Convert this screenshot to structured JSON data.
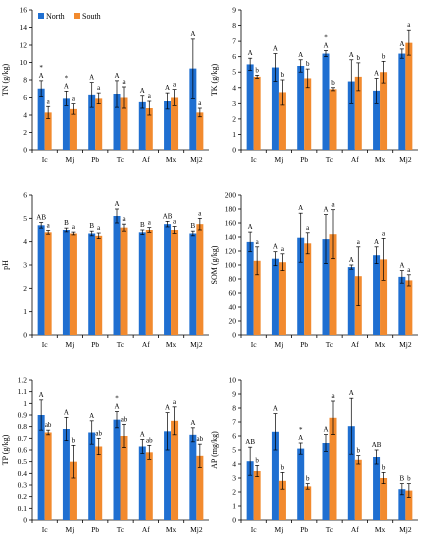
{
  "legend": {
    "series": [
      "North",
      "South"
    ]
  },
  "colors": {
    "North": "#1f6fd1",
    "South": "#f28a2e"
  },
  "chart_data": [
    {
      "type": "bar",
      "ylabel": "TN (g/kg)",
      "ylim": [
        0,
        16
      ],
      "yticks": [
        0,
        2,
        4,
        6,
        8,
        10,
        12,
        14,
        16
      ],
      "categories": [
        "Ic",
        "Mj",
        "Pb",
        "Tc",
        "Af",
        "Mx",
        "Mj2"
      ],
      "series": [
        {
          "name": "North",
          "values": [
            7.0,
            5.9,
            6.3,
            6.4,
            5.5,
            5.6,
            9.3
          ],
          "errors": [
            0.9,
            0.8,
            1.4,
            1.5,
            0.7,
            0.9,
            3.4
          ],
          "letters": [
            "A",
            "A",
            "A",
            "A",
            "A",
            "A",
            "A"
          ]
        },
        {
          "name": "South",
          "values": [
            4.3,
            4.7,
            5.9,
            6.0,
            4.8,
            6.0,
            4.3
          ],
          "errors": [
            0.7,
            0.6,
            0.6,
            1.2,
            0.8,
            0.9,
            0.5
          ],
          "letters": [
            "a",
            "a",
            "a",
            "a",
            "a",
            "a",
            "a"
          ]
        }
      ],
      "stars": [
        "*",
        "*",
        "",
        "",
        "",
        "",
        ""
      ]
    },
    {
      "type": "bar",
      "ylabel": "TK (g/kg)",
      "ylim": [
        0,
        9
      ],
      "yticks": [
        0,
        1,
        2,
        3,
        4,
        5,
        6,
        7,
        8,
        9
      ],
      "categories": [
        "Ic",
        "Mj",
        "Pb",
        "Tc",
        "Af",
        "Mx",
        "Mj2"
      ],
      "series": [
        {
          "name": "North",
          "values": [
            5.5,
            5.3,
            5.4,
            6.2,
            4.4,
            3.8,
            6.2
          ],
          "errors": [
            0.4,
            0.9,
            0.4,
            0.2,
            1.4,
            0.8,
            0.3
          ],
          "letters": [
            "A",
            "A",
            "A",
            "A",
            "A",
            "A",
            "A"
          ]
        },
        {
          "name": "South",
          "values": [
            4.7,
            3.7,
            4.6,
            3.9,
            4.7,
            5.0,
            6.9
          ],
          "errors": [
            0.1,
            0.8,
            0.6,
            0.1,
            0.9,
            0.7,
            0.8
          ],
          "letters": [
            "b",
            "b",
            "b",
            "b",
            "b",
            "b",
            "a"
          ]
        }
      ],
      "stars": [
        "",
        "",
        "",
        "*",
        "",
        "",
        ""
      ]
    },
    {
      "type": "bar",
      "ylabel": "pH",
      "ylim": [
        0,
        6
      ],
      "yticks": [
        0,
        1,
        2,
        3,
        4,
        5,
        6
      ],
      "categories": [
        "Ic",
        "Mj",
        "Pb",
        "Tc",
        "Af",
        "Mx",
        "Mj2"
      ],
      "series": [
        {
          "name": "North",
          "values": [
            4.7,
            4.5,
            4.35,
            5.1,
            4.4,
            4.75,
            4.35
          ],
          "errors": [
            0.12,
            0.08,
            0.1,
            0.3,
            0.1,
            0.12,
            0.1
          ],
          "letters": [
            "AB",
            "B",
            "B",
            "A",
            "B",
            "AB",
            "B"
          ]
        },
        {
          "name": "South",
          "values": [
            4.4,
            4.35,
            4.25,
            4.6,
            4.5,
            4.5,
            4.75
          ],
          "errors": [
            0.08,
            0.06,
            0.12,
            0.15,
            0.1,
            0.15,
            0.25
          ],
          "letters": [
            "a",
            "a",
            "a",
            "a",
            "a",
            "a",
            "a"
          ]
        }
      ],
      "stars": [
        "",
        "",
        "",
        "",
        "",
        "",
        ""
      ]
    },
    {
      "type": "bar",
      "ylabel": "SOM (g/kg)",
      "ylim": [
        0,
        200
      ],
      "yticks": [
        0,
        20,
        40,
        60,
        80,
        100,
        120,
        140,
        160,
        180,
        200
      ],
      "categories": [
        "Ic",
        "Mj",
        "Pb",
        "Tc",
        "Af",
        "Mx",
        "Mj2"
      ],
      "series": [
        {
          "name": "North",
          "values": [
            133,
            109,
            139,
            137,
            97,
            114,
            83
          ],
          "errors": [
            14,
            10,
            35,
            35,
            3,
            12,
            9
          ],
          "letters": [
            "A",
            "A",
            "A",
            "A",
            "A",
            "A",
            "A"
          ]
        },
        {
          "name": "South",
          "values": [
            106,
            104,
            131,
            144,
            84,
            108,
            78
          ],
          "errors": [
            20,
            12,
            15,
            35,
            42,
            30,
            8
          ],
          "letters": [
            "a",
            "a",
            "a",
            "a",
            "a",
            "a",
            "a"
          ]
        }
      ],
      "stars": [
        "",
        "",
        "",
        "",
        "",
        "",
        ""
      ]
    },
    {
      "type": "bar",
      "ylabel": "TP (g/kg)",
      "ylim": [
        0,
        1.2
      ],
      "yticks": [
        0,
        0.1,
        0.2,
        0.3,
        0.4,
        0.5,
        0.6,
        0.7,
        0.8,
        0.9,
        1,
        1.1,
        1.2
      ],
      "categories": [
        "Ic",
        "Mj",
        "Pb",
        "Tc",
        "Af",
        "Mx",
        "Mj2"
      ],
      "series": [
        {
          "name": "North",
          "values": [
            0.9,
            0.78,
            0.75,
            0.86,
            0.63,
            0.76,
            0.73
          ],
          "errors": [
            0.13,
            0.1,
            0.1,
            0.07,
            0.06,
            0.16,
            0.06
          ],
          "letters": [
            "A",
            "A",
            "A",
            "A",
            "A",
            "A",
            "A"
          ]
        },
        {
          "name": "South",
          "values": [
            0.75,
            0.5,
            0.63,
            0.72,
            0.58,
            0.85,
            0.55
          ],
          "errors": [
            0.02,
            0.14,
            0.07,
            0.1,
            0.06,
            0.12,
            0.1
          ],
          "letters": [
            "ab",
            "b",
            "ab",
            "ab",
            "ab",
            "a",
            "ab"
          ]
        }
      ],
      "stars": [
        "",
        "",
        "",
        "*",
        "",
        "",
        ""
      ]
    },
    {
      "type": "bar",
      "ylabel": "AP (mg/kg)",
      "ylim": [
        0,
        10
      ],
      "yticks": [
        0,
        1,
        2,
        3,
        4,
        5,
        6,
        7,
        8,
        9,
        10
      ],
      "categories": [
        "Ic",
        "Mj",
        "Pb",
        "Tc",
        "Af",
        "Mx",
        "Mj2"
      ],
      "series": [
        {
          "name": "North",
          "values": [
            4.2,
            6.3,
            5.1,
            5.5,
            6.7,
            4.5,
            2.2
          ],
          "errors": [
            1.0,
            1.3,
            0.4,
            0.6,
            2.0,
            0.5,
            0.4
          ],
          "letters": [
            "AB",
            "A",
            "A",
            "A",
            "A",
            "AB",
            "B"
          ]
        },
        {
          "name": "South",
          "values": [
            3.5,
            2.8,
            2.4,
            7.3,
            4.3,
            3.0,
            2.1
          ],
          "errors": [
            0.4,
            0.6,
            0.2,
            1.2,
            0.3,
            0.4,
            0.5
          ],
          "letters": [
            "b",
            "b",
            "b",
            "a",
            "b",
            "b",
            "b"
          ]
        }
      ],
      "stars": [
        "",
        "",
        "*",
        "",
        "",
        "",
        ""
      ]
    }
  ]
}
